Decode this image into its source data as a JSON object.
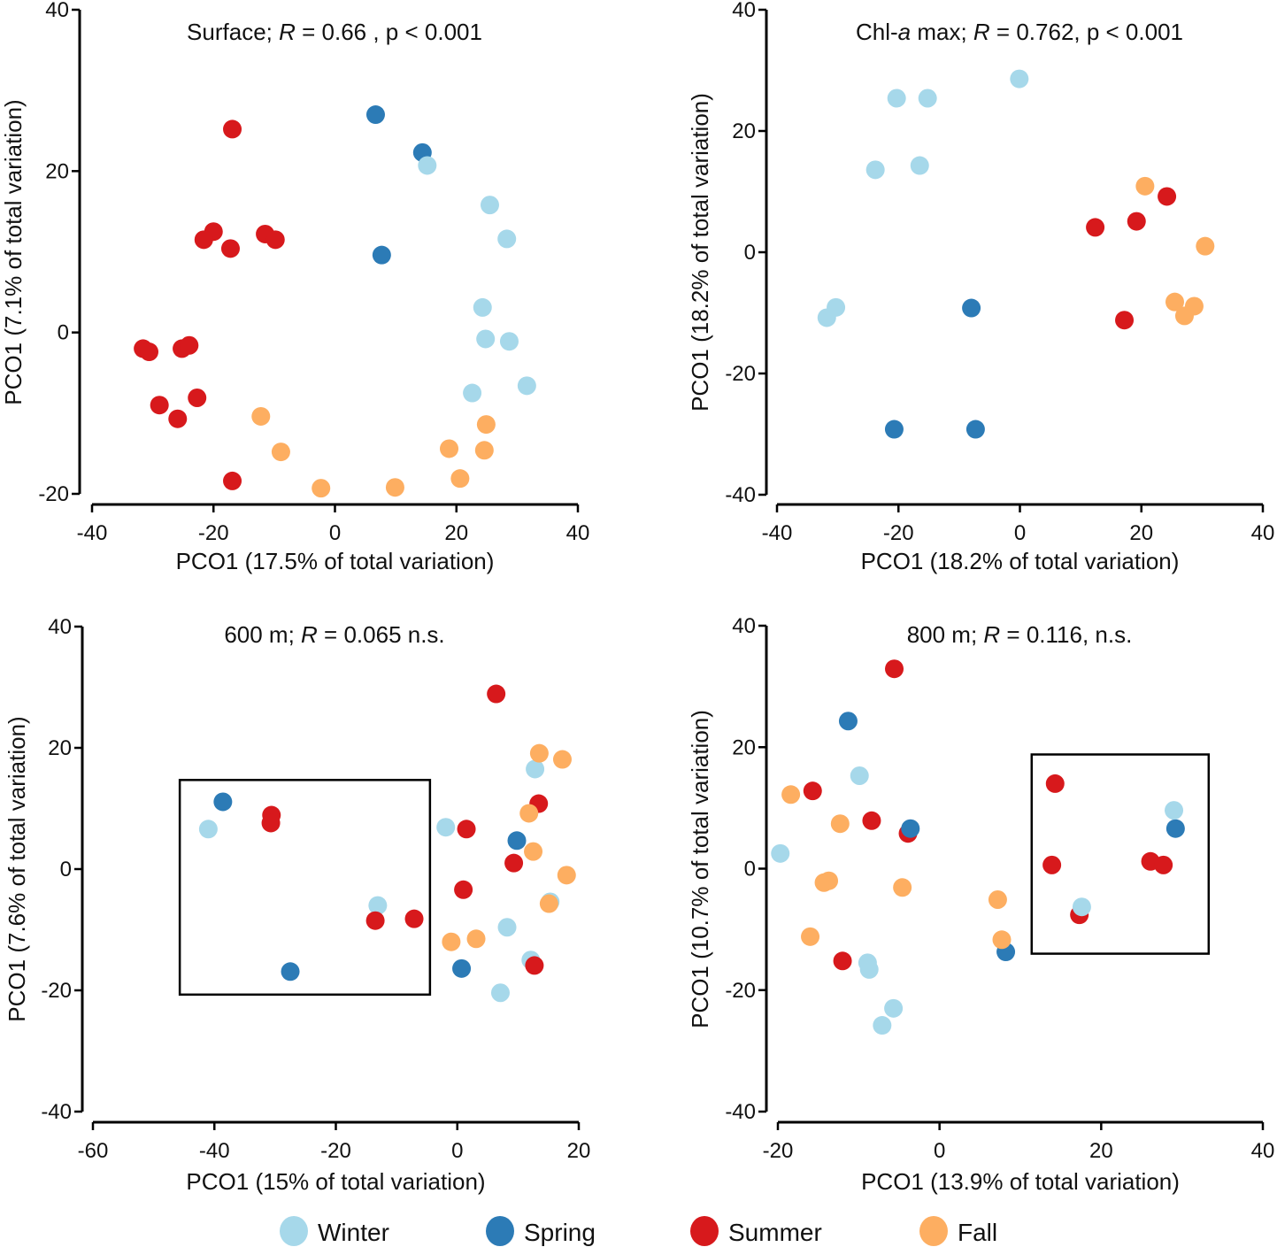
{
  "colors": {
    "Winter": "#a6d8ea",
    "Spring": "#2c7bb6",
    "Summer": "#d7191c",
    "Fall": "#fdae61"
  },
  "legend": [
    {
      "label": "Winter",
      "key": "Winter"
    },
    {
      "label": "Spring",
      "key": "Spring"
    },
    {
      "label": "Summer",
      "key": "Summer"
    },
    {
      "label": "Fall",
      "key": "Fall"
    }
  ],
  "chart_data": [
    {
      "type": "scatter",
      "title_parts": [
        {
          "text": "Surface; ",
          "italic": false
        },
        {
          "text": "R",
          "italic": true
        },
        {
          "text": " = 0.66 , p < 0.001",
          "italic": false
        }
      ],
      "xlabel": "PCO1 (17.5% of total variation)",
      "ylabel": "PCO1 (7.1% of total variation)",
      "xlim": [
        -40,
        40
      ],
      "ylim": [
        -20,
        40
      ],
      "xticks": [
        -40,
        -20,
        0,
        20,
        40
      ],
      "yticks": [
        -20,
        0,
        20,
        40
      ],
      "box": null,
      "series": [
        {
          "name": "Summer",
          "points": [
            [
              -16.9,
              25.2
            ],
            [
              -20,
              12.5
            ],
            [
              -21.6,
              11.5
            ],
            [
              -17.2,
              10.4
            ],
            [
              -11.5,
              12.2
            ],
            [
              -9.8,
              11.5
            ],
            [
              -31.6,
              -2
            ],
            [
              -30.6,
              -2.4
            ],
            [
              -25.2,
              -2
            ],
            [
              -24,
              -1.6
            ],
            [
              -28.9,
              -9
            ],
            [
              -22.7,
              -8.1
            ],
            [
              -25.9,
              -10.7
            ],
            [
              -16.9,
              -18.4
            ]
          ]
        },
        {
          "name": "Spring",
          "points": [
            [
              6.7,
              27
            ],
            [
              14.4,
              22.3
            ],
            [
              7.7,
              9.6
            ]
          ]
        },
        {
          "name": "Winter",
          "points": [
            [
              15.2,
              20.7
            ],
            [
              25.5,
              15.8
            ],
            [
              28.3,
              11.6
            ],
            [
              24.3,
              3.1
            ],
            [
              24.8,
              -0.8
            ],
            [
              28.7,
              -1.1
            ],
            [
              22.6,
              -7.5
            ],
            [
              31.6,
              -6.6
            ]
          ]
        },
        {
          "name": "Fall",
          "points": [
            [
              -12.2,
              -10.4
            ],
            [
              -8.9,
              -14.8
            ],
            [
              -2.3,
              -19.3
            ],
            [
              9.9,
              -19.2
            ],
            [
              18.8,
              -14.4
            ],
            [
              24.9,
              -11.4
            ],
            [
              24.6,
              -14.6
            ],
            [
              20.6,
              -18.1
            ]
          ]
        }
      ]
    },
    {
      "type": "scatter",
      "title_parts": [
        {
          "text": "Chl-",
          "italic": false
        },
        {
          "text": "a",
          "italic": true
        },
        {
          "text": " max; ",
          "italic": false
        },
        {
          "text": "R",
          "italic": true
        },
        {
          "text": " = 0.762, p < 0.001",
          "italic": false
        }
      ],
      "xlabel": "PCO1 (18.2% of total variation)",
      "ylabel": "PCO1 (18.2% of total variation)",
      "xlim": [
        -40,
        40
      ],
      "ylim": [
        -40,
        40
      ],
      "xticks": [
        -40,
        -20,
        0,
        20,
        40
      ],
      "yticks": [
        -40,
        -20,
        0,
        20,
        40
      ],
      "box": null,
      "series": [
        {
          "name": "Winter",
          "points": [
            [
              -0.1,
              28.6
            ],
            [
              -20.3,
              25.4
            ],
            [
              -15.2,
              25.4
            ],
            [
              -23.8,
              13.6
            ],
            [
              -16.5,
              14.3
            ],
            [
              -31.8,
              -10.8
            ],
            [
              -30.3,
              -9.1
            ]
          ]
        },
        {
          "name": "Spring",
          "points": [
            [
              -8,
              -9.2
            ],
            [
              -20.7,
              -29.2
            ],
            [
              -7.3,
              -29.2
            ]
          ]
        },
        {
          "name": "Summer",
          "points": [
            [
              24.2,
              9.2
            ],
            [
              19.2,
              5.1
            ],
            [
              12.4,
              4.1
            ],
            [
              17.2,
              -11.2
            ]
          ]
        },
        {
          "name": "Fall",
          "points": [
            [
              20.6,
              10.9
            ],
            [
              30.5,
              1
            ],
            [
              25.5,
              -8.2
            ],
            [
              28.7,
              -8.9
            ],
            [
              27.1,
              -10.5
            ]
          ]
        }
      ]
    },
    {
      "type": "scatter",
      "title_parts": [
        {
          "text": "600 m; ",
          "italic": false
        },
        {
          "text": "R",
          "italic": true
        },
        {
          "text": " = 0.065 n.s.",
          "italic": false
        }
      ],
      "xlabel": "PCO1 (15% of total variation)",
      "ylabel": "PCO1 (7.6% of total variation)",
      "xlim": [
        -60,
        20
      ],
      "ylim": [
        -40,
        40
      ],
      "xticks": [
        -60,
        -40,
        -20,
        0,
        20
      ],
      "yticks": [
        -40,
        -20,
        0,
        20,
        40
      ],
      "box": {
        "x": [
          -45.7,
          -4.5
        ],
        "y": [
          -20.7,
          14.7
        ]
      },
      "series": [
        {
          "name": "Spring",
          "points": [
            [
              -38.6,
              11.1
            ],
            [
              -27.5,
              -16.9
            ],
            [
              9.8,
              4.7
            ],
            [
              0.7,
              -16.4
            ]
          ]
        },
        {
          "name": "Winter",
          "points": [
            [
              -41,
              6.6
            ],
            [
              -13.1,
              -6
            ],
            [
              -1.9,
              6.9
            ],
            [
              8.2,
              -9.6
            ],
            [
              12.1,
              -15
            ],
            [
              7.1,
              -20.4
            ],
            [
              12.8,
              16.5
            ],
            [
              15.3,
              -5.4
            ]
          ]
        },
        {
          "name": "Summer",
          "points": [
            [
              -30.6,
              8.9
            ],
            [
              -30.7,
              7.6
            ],
            [
              -13.5,
              -8.5
            ],
            [
              -7.1,
              -8.2
            ],
            [
              6.4,
              28.9
            ],
            [
              1.5,
              6.6
            ],
            [
              13.4,
              10.8
            ],
            [
              9.3,
              1
            ],
            [
              1,
              -3.4
            ],
            [
              12.7,
              -15.9
            ]
          ]
        },
        {
          "name": "Fall",
          "points": [
            [
              13.5,
              19.1
            ],
            [
              17.3,
              18.1
            ],
            [
              11.8,
              9.2
            ],
            [
              12.5,
              2.9
            ],
            [
              18,
              -1
            ],
            [
              -1,
              -12
            ],
            [
              3.1,
              -11.5
            ],
            [
              15.1,
              -5.7
            ]
          ]
        }
      ]
    },
    {
      "type": "scatter",
      "title_parts": [
        {
          "text": "800 m; ",
          "italic": false
        },
        {
          "text": "R",
          "italic": true
        },
        {
          "text": " = 0.116, n.s.",
          "italic": false
        }
      ],
      "xlabel": "PCO1 (13.9% of total variation)",
      "ylabel": "PCO1 (10.7% of total variation)",
      "xlim": [
        -20,
        40
      ],
      "ylim": [
        -40,
        40
      ],
      "xticks": [
        -20,
        0,
        20,
        40
      ],
      "yticks": [
        -40,
        -20,
        0,
        20,
        40
      ],
      "box": {
        "x": [
          11.4,
          33.3
        ],
        "y": [
          -14,
          18.8
        ]
      },
      "series": [
        {
          "name": "Summer",
          "points": [
            [
              -5.6,
              32.9
            ],
            [
              -15.7,
              12.8
            ],
            [
              -8.4,
              7.9
            ],
            [
              -3.9,
              5.8
            ],
            [
              -12,
              -15.2
            ],
            [
              14.3,
              14
            ],
            [
              13.9,
              0.6
            ],
            [
              26.1,
              1.2
            ],
            [
              27.7,
              0.6
            ],
            [
              17.3,
              -7.6
            ]
          ]
        },
        {
          "name": "Spring",
          "points": [
            [
              -11.3,
              24.3
            ],
            [
              -3.6,
              6.6
            ],
            [
              8.2,
              -13.7
            ],
            [
              29.2,
              6.6
            ]
          ]
        },
        {
          "name": "Winter",
          "points": [
            [
              -19.7,
              2.5
            ],
            [
              -9.9,
              15.3
            ],
            [
              -8.9,
              -15.5
            ],
            [
              -8.7,
              -16.6
            ],
            [
              -5.7,
              -23
            ],
            [
              -7.1,
              -25.8
            ],
            [
              29,
              9.6
            ],
            [
              17.6,
              -6.3
            ]
          ]
        },
        {
          "name": "Fall",
          "points": [
            [
              -18.4,
              12.2
            ],
            [
              -12.3,
              7.4
            ],
            [
              -14.3,
              -2.3
            ],
            [
              -13.7,
              -2
            ],
            [
              -16,
              -11.2
            ],
            [
              -4.6,
              -3.1
            ],
            [
              7.2,
              -5.1
            ],
            [
              7.7,
              -11.7
            ]
          ]
        }
      ]
    }
  ]
}
